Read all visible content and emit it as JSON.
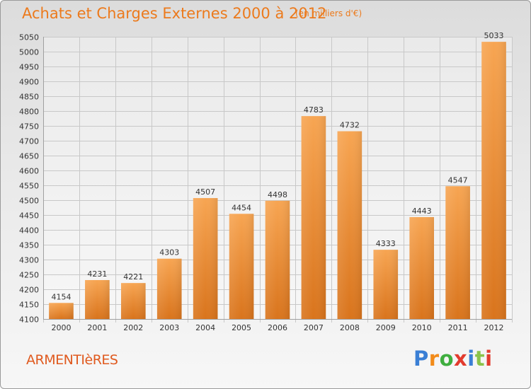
{
  "header": {
    "title": "Achats et Charges Externes 2000 à 2012",
    "subtitle": "(en milliers d'€)"
  },
  "footer": {
    "town": "ARMENTIèRES",
    "logo": {
      "letters": [
        "P",
        "r",
        "o",
        "x",
        "i",
        "t",
        "i"
      ],
      "colors": [
        "#3a7fd5",
        "#f28b1a",
        "#3fae3f",
        "#e23b2e",
        "#3a7fd5",
        "#8bc34a",
        "#e23b2e"
      ]
    }
  },
  "colors": {
    "bar_top": "#f7a552",
    "bar_bottom": "#d9741c",
    "grid": "#c8c8c8",
    "axis_text": "#333333"
  },
  "chart_data": {
    "type": "bar",
    "title": "Achats et Charges Externes 2000 à 2012",
    "subtitle": "(en milliers d'€)",
    "categories": [
      "2000",
      "2001",
      "2002",
      "2003",
      "2004",
      "2005",
      "2006",
      "2007",
      "2008",
      "2009",
      "2010",
      "2011",
      "2012"
    ],
    "values": [
      4154,
      4231,
      4221,
      4303,
      4507,
      4454,
      4498,
      4783,
      4732,
      4333,
      4443,
      4547,
      5033
    ],
    "ylim": [
      4100,
      5050
    ],
    "ytick_step": 50,
    "grid": true,
    "data_labels": true
  }
}
